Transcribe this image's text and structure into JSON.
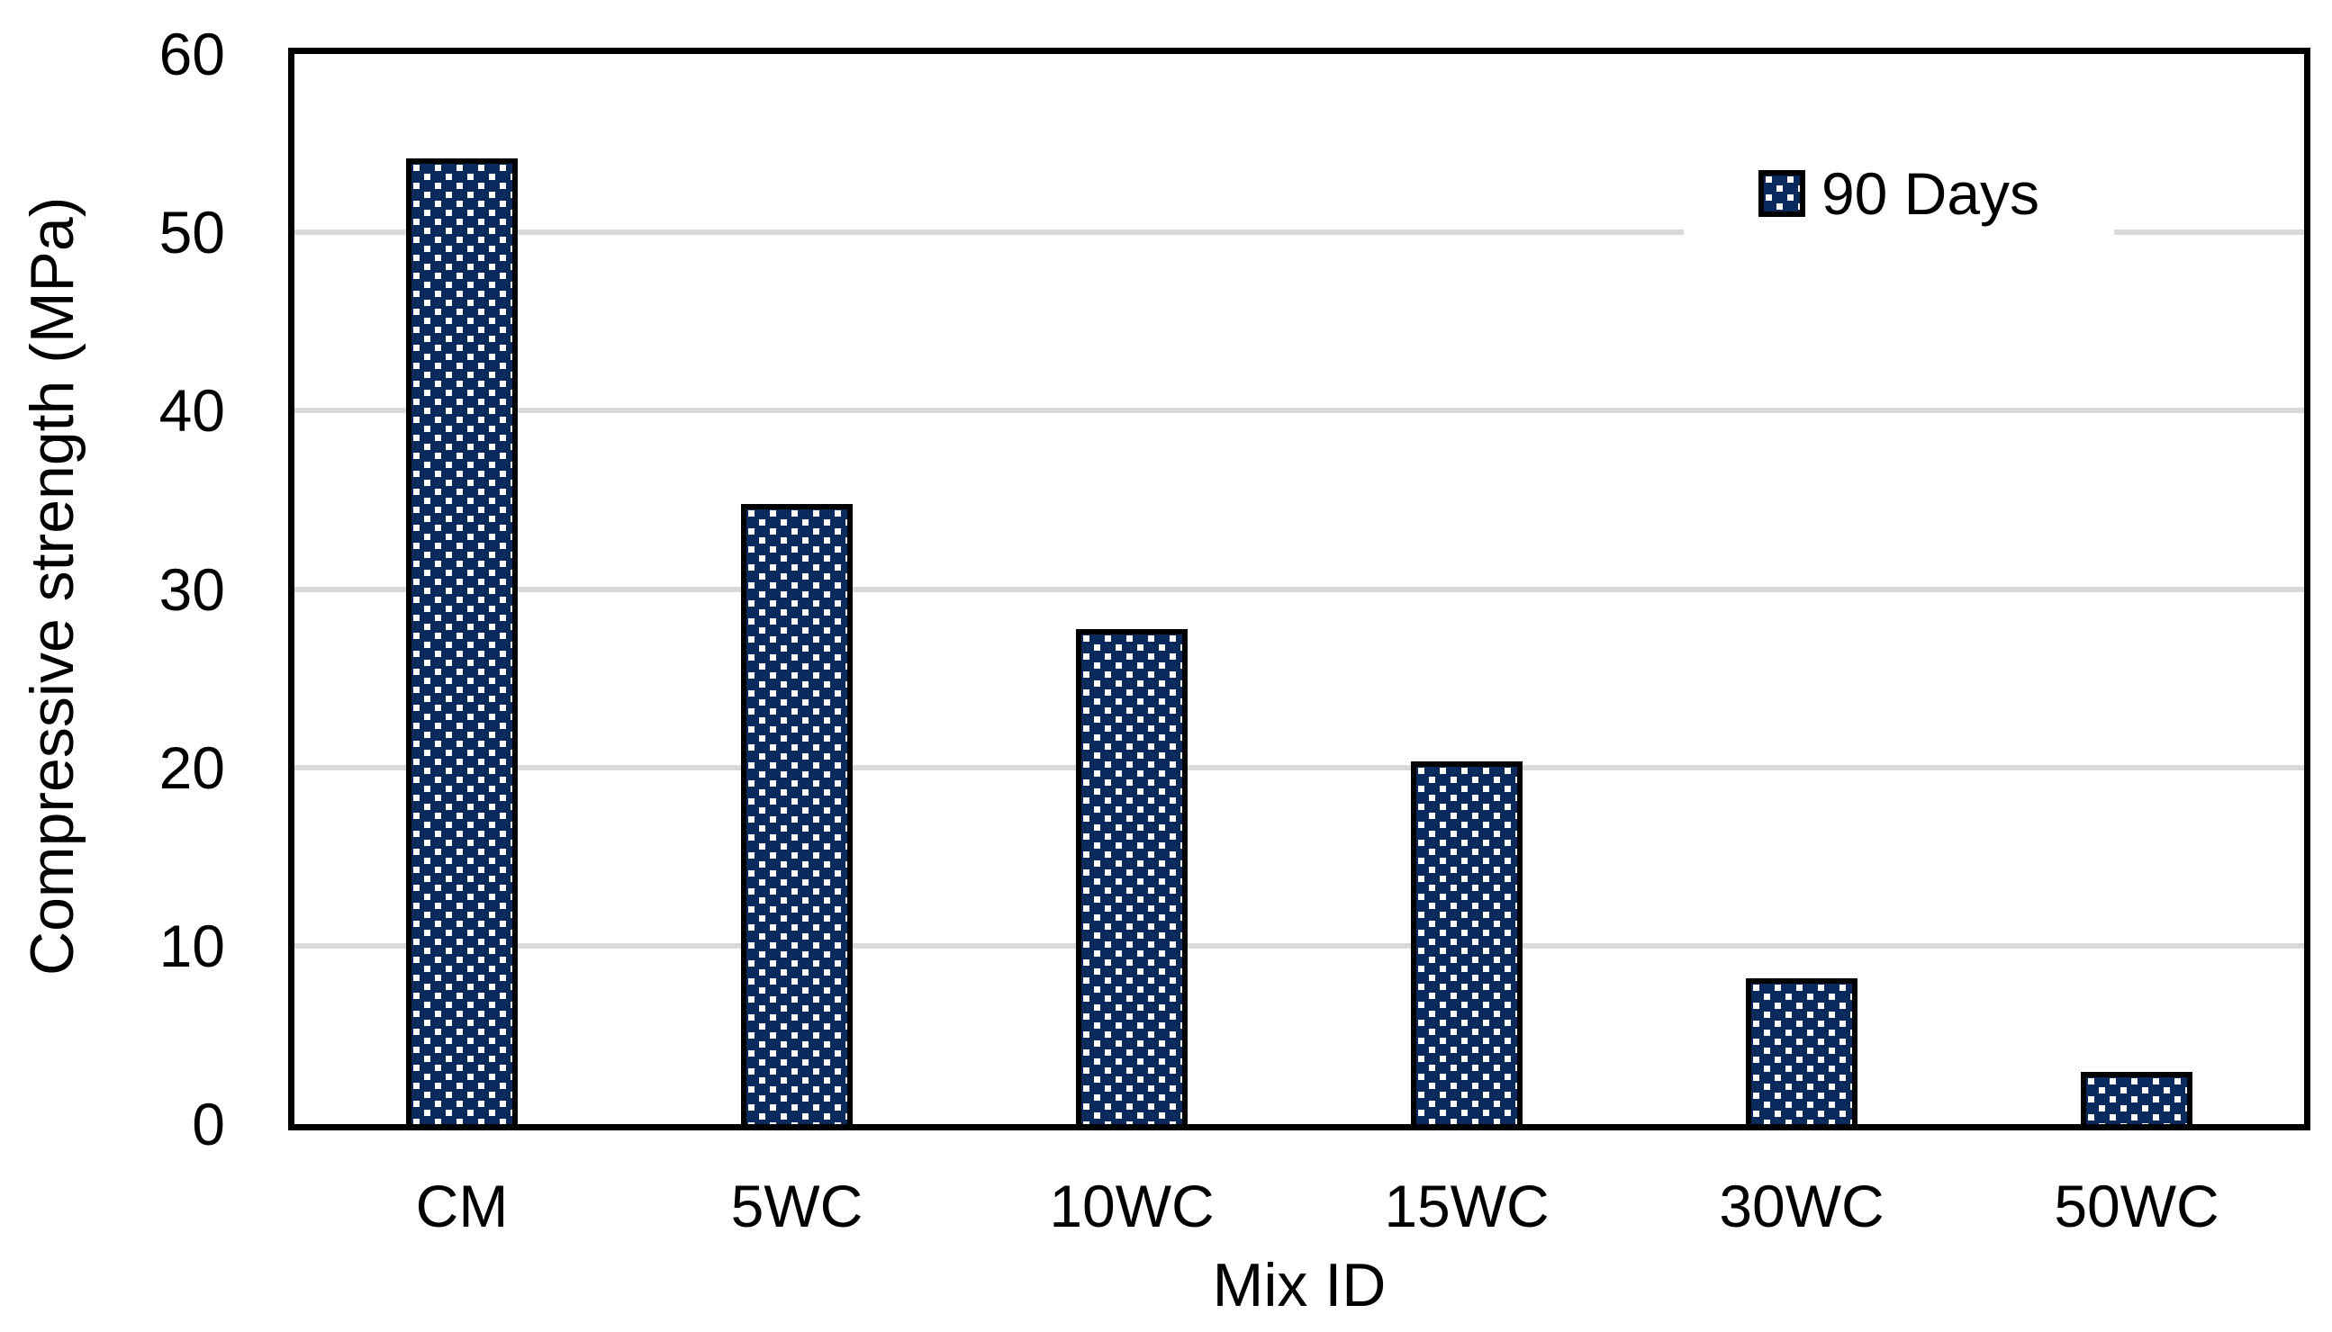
{
  "chart_data": {
    "type": "bar",
    "title": "",
    "categories": [
      "CM",
      "5WC",
      "10WC",
      "15WC",
      "30WC",
      "50WC"
    ],
    "series": [
      {
        "name": "90 Days",
        "values": [
          54,
          34.6,
          27.6,
          20.2,
          8,
          2.8
        ]
      }
    ],
    "xlabel": "Mix ID",
    "ylabel": "Compressive strength (MPa)",
    "ylim": [
      0,
      60
    ],
    "yticks": [
      0,
      10,
      20,
      30,
      40,
      50,
      60
    ],
    "grid": "horizontal",
    "legend_position": "inside-top-right",
    "bar_pattern": "white dotted squares on navy, black bar outline",
    "colors": {
      "bar_fill": "#0a2a5e",
      "bar_pattern_dot": "#ffffff",
      "bar_border": "#000000",
      "gridline": "#d9d9d9",
      "axis": "#000000",
      "text": "#000000",
      "background": "#ffffff"
    }
  }
}
